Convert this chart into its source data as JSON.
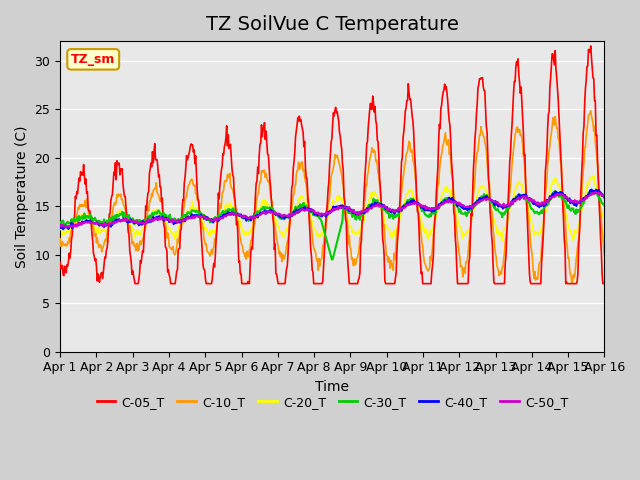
{
  "title": "TZ SoilVue C Temperature",
  "xlabel": "Time",
  "ylabel": "Soil Temperature (C)",
  "ylim": [
    0,
    32
  ],
  "yticks": [
    0,
    5,
    10,
    15,
    20,
    25,
    30
  ],
  "xlim": [
    0,
    15
  ],
  "xtick_labels": [
    "Apr 1",
    "Apr 2",
    "Apr 3",
    "Apr 4",
    "Apr 5",
    "Apr 6",
    "Apr 7",
    "Apr 8",
    "Apr 9",
    "Apr 10",
    "Apr 11",
    "Apr 12",
    "Apr 13",
    "Apr 14",
    "Apr 15",
    "Apr 16"
  ],
  "series_colors": {
    "C-05_T": "#ff0000",
    "C-10_T": "#ff9900",
    "C-20_T": "#ffff00",
    "C-30_T": "#00cc00",
    "C-40_T": "#0000ff",
    "C-50_T": "#cc00cc"
  },
  "legend_label": "TZ_sm",
  "background_color": "#d0d0d0",
  "plot_bg_color": "#e8e8e8",
  "title_fontsize": 14,
  "axis_fontsize": 10,
  "tick_fontsize": 9
}
